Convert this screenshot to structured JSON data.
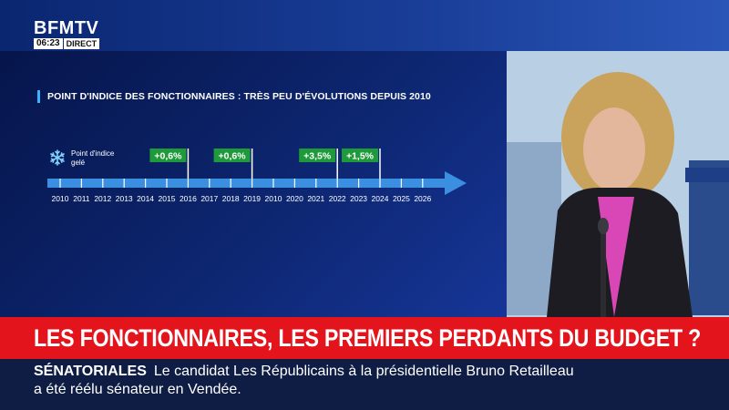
{
  "channel": {
    "logo": "BFMTV",
    "time": "06:23",
    "live": "DIRECT"
  },
  "infographic": {
    "title": "POINT D'INDICE DES FONCTIONNAIRES : TRÈS PEU D'ÉVOLUTIONS DEPUIS 2010",
    "legend_icon": "snowflake-icon",
    "legend_line1": "Point d'indice",
    "legend_line2": "gelé",
    "years": [
      "2010",
      "2011",
      "2012",
      "2013",
      "2014",
      "2015",
      "2016",
      "2017",
      "2018",
      "2019",
      "2010",
      "2020",
      "2021",
      "2022",
      "2023",
      "2024",
      "2025",
      "2026"
    ],
    "increases": [
      {
        "label": "+0,6%",
        "after_year_index": 6
      },
      {
        "label": "+0,6%",
        "after_year_index": 9
      },
      {
        "label": "+3,5%",
        "after_year_index": 13
      },
      {
        "label": "+1,5%",
        "after_year_index": 15
      }
    ],
    "colors": {
      "arrow": "#3a8fe0",
      "badge": "#1f9a3a",
      "title_accent": "#3bb4ff"
    }
  },
  "headline": "LES FONCTIONNAIRES, LES PREMIERS PERDANTS DU BUDGET ?",
  "ticker": {
    "tag": "SÉNATORIALES",
    "line1": "Le candidat Les Républicains à la présidentielle Bruno Retailleau",
    "line2": "a été réélu sénateur en Vendée."
  },
  "colors": {
    "headline_bg": "#e3141b",
    "ticker_bg": "#0f1d44"
  }
}
